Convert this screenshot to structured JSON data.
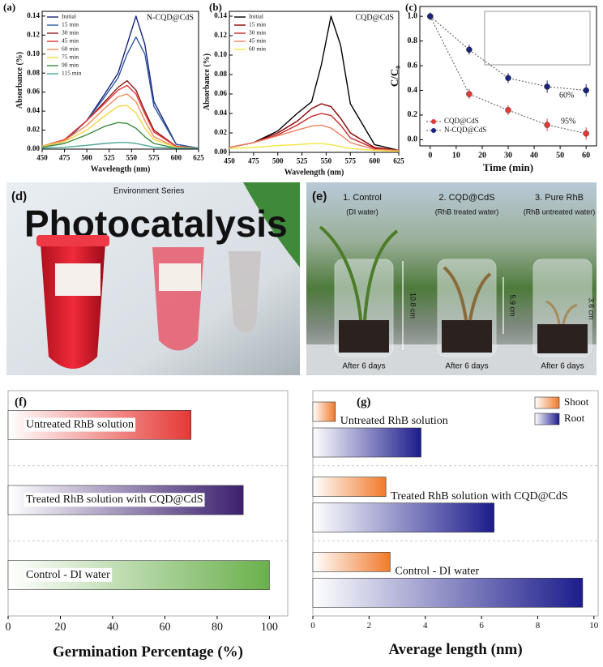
{
  "chart_data": [
    {
      "type": "line",
      "label": "(a)",
      "annotation": "N-CQD@CdS",
      "x_label": "Wavelength (nm)",
      "y_label": "Absorbance (%)",
      "legend": "upper left",
      "x": [
        450,
        475,
        500,
        520,
        535,
        545,
        555,
        565,
        575,
        600,
        625
      ],
      "xlim": [
        450,
        625
      ],
      "xticks": [
        450,
        475,
        500,
        525,
        550,
        575,
        600,
        625
      ],
      "ylim": [
        0,
        0.145
      ],
      "yticks": [
        {
          "value": 0,
          "label": "0.00"
        },
        0.02,
        0.04,
        0.06,
        0.08,
        {
          "value": 0.1,
          "label": "0.10"
        },
        0.12,
        0.14
      ],
      "series": [
        {
          "name": "Initial",
          "color": "#1a237e",
          "values": [
            0.003,
            0.008,
            0.03,
            0.058,
            0.08,
            0.11,
            0.14,
            0.11,
            0.05,
            0.005,
            0.001
          ]
        },
        {
          "name": "15 min",
          "color": "#2c5aa0",
          "values": [
            0.003,
            0.008,
            0.03,
            0.055,
            0.075,
            0.1,
            0.118,
            0.1,
            0.045,
            0.005,
            0.001
          ]
        },
        {
          "name": "30 min",
          "color": "#8b1a1a",
          "values": [
            0.003,
            0.01,
            0.03,
            0.05,
            0.065,
            0.072,
            0.062,
            0.04,
            0.02,
            0.003,
            0.001
          ]
        },
        {
          "name": "45 min",
          "color": "#e53935",
          "values": [
            0.003,
            0.01,
            0.03,
            0.048,
            0.062,
            0.067,
            0.058,
            0.037,
            0.018,
            0.003,
            0.001
          ]
        },
        {
          "name": "60 min",
          "color": "#ef8a5a",
          "values": [
            0.003,
            0.009,
            0.025,
            0.043,
            0.055,
            0.058,
            0.05,
            0.03,
            0.013,
            0.002,
            0.001
          ]
        },
        {
          "name": "75 min",
          "color": "#f5d742",
          "values": [
            0.003,
            0.008,
            0.02,
            0.035,
            0.045,
            0.046,
            0.038,
            0.022,
            0.01,
            0.002,
            0.001
          ]
        },
        {
          "name": "90 min",
          "color": "#3c8a3c",
          "values": [
            0.002,
            0.006,
            0.015,
            0.024,
            0.028,
            0.027,
            0.022,
            0.013,
            0.006,
            0.001,
            0.001
          ]
        },
        {
          "name": "115 min",
          "color": "#4aa89a",
          "values": [
            0.001,
            0.002,
            0.004,
            0.006,
            0.007,
            0.007,
            0.006,
            0.004,
            0.002,
            0.001,
            0.001
          ]
        }
      ]
    },
    {
      "type": "line",
      "label": "(b)",
      "annotation": "CQD@CdS",
      "x_label": "Wavelength (nm)",
      "y_label": "Absorbance (%)",
      "legend": "upper left",
      "x": [
        450,
        475,
        500,
        520,
        535,
        545,
        555,
        565,
        575,
        600,
        625
      ],
      "xlim": [
        450,
        625
      ],
      "xticks": [
        450,
        475,
        500,
        525,
        550,
        575,
        600,
        625
      ],
      "ylim": [
        0,
        0.145
      ],
      "yticks": [
        {
          "value": 0,
          "label": "0.00"
        },
        0.02,
        0.04,
        0.06,
        0.08,
        {
          "value": 0.1,
          "label": "0.10"
        },
        0.12,
        0.14
      ],
      "series": [
        {
          "name": "Initial",
          "color": "#000000",
          "values": [
            0.005,
            0.01,
            0.022,
            0.04,
            0.052,
            0.09,
            0.14,
            0.11,
            0.05,
            0.008,
            0.002
          ]
        },
        {
          "name": "15 min",
          "color": "#8b0000",
          "values": [
            0.005,
            0.01,
            0.02,
            0.032,
            0.045,
            0.05,
            0.047,
            0.035,
            0.02,
            0.005,
            0.002
          ]
        },
        {
          "name": "30 min",
          "color": "#c62828",
          "values": [
            0.005,
            0.01,
            0.018,
            0.028,
            0.037,
            0.04,
            0.038,
            0.028,
            0.015,
            0.004,
            0.002
          ]
        },
        {
          "name": "45 min",
          "color": "#f08060",
          "values": [
            0.005,
            0.01,
            0.017,
            0.023,
            0.027,
            0.028,
            0.025,
            0.018,
            0.01,
            0.003,
            0.002
          ]
        },
        {
          "name": "60 min",
          "color": "#f5e642",
          "values": [
            0.004,
            0.005,
            0.007,
            0.008,
            0.009,
            0.009,
            0.008,
            0.006,
            0.004,
            0.002,
            0.001
          ]
        }
      ]
    },
    {
      "type": "scatter",
      "label": "(c)",
      "x_label": "Time (min)",
      "y_label": "C/C₀",
      "legend": "lower left",
      "annotations": [
        "60%",
        "95%"
      ],
      "x": [
        0,
        15,
        30,
        45,
        60
      ],
      "xlim": [
        -4,
        64
      ],
      "xticks": [
        0,
        10,
        20,
        30,
        40,
        50,
        60
      ],
      "ylim": [
        -0.05,
        1.08
      ],
      "yticks": [
        {
          "value": 0,
          "label": "0.0"
        },
        0.2,
        0.4,
        0.6,
        0.8,
        {
          "value": 1,
          "label": "1.0"
        }
      ],
      "series": [
        {
          "name": "CQD@CdS",
          "color": "#e53935",
          "values": [
            1.0,
            0.37,
            0.24,
            0.12,
            0.05
          ],
          "errors": [
            0.03,
            0.04,
            0.04,
            0.05,
            0.05
          ]
        },
        {
          "name": "N-CQD@CdS",
          "color": "#1a237e",
          "values": [
            1.0,
            0.73,
            0.5,
            0.43,
            0.4
          ],
          "errors": [
            0.03,
            0.04,
            0.04,
            0.05,
            0.05
          ]
        }
      ]
    },
    {
      "type": "bar",
      "orientation": "horizontal",
      "label": "(f)",
      "x_label": "Germination Percentage (%)",
      "categories": [
        "Untreated RhB solution",
        "Treated RhB solution with CQD@CdS",
        "Control - DI water"
      ],
      "values": [
        70,
        90,
        100
      ],
      "colors": [
        "#e53935",
        "#3b1f6e",
        "#6ab04c"
      ],
      "xlim": [
        0,
        107
      ],
      "xticks": [
        0,
        20,
        40,
        60,
        80,
        100
      ]
    },
    {
      "type": "grouped-bar",
      "orientation": "horizontal",
      "label": "(g)",
      "x_label": "Average length (nm)",
      "legend": "upper right",
      "categories": [
        "Untreated RhB solution",
        "Treated RhB solution with CQD@CdS",
        "Control - DI water"
      ],
      "series": [
        {
          "name": "Shoot",
          "color": "#f07a2a",
          "values": [
            0.8,
            2.6,
            2.75
          ]
        },
        {
          "name": "Root",
          "color": "#1c1c8c",
          "values": [
            3.85,
            6.45,
            9.6
          ]
        }
      ],
      "xlim": [
        0,
        10.15
      ],
      "xticks": [
        0,
        2,
        4,
        6,
        8,
        10
      ]
    }
  ],
  "photos": {
    "d": {
      "label": "(d)",
      "book_title": "Photocatalysis",
      "series_name": "Environment Series"
    },
    "e": {
      "label": "(e)",
      "jars": [
        {
          "title": "1. Control",
          "subtitle": "(DI water)",
          "height": "10.8 cm",
          "caption": "After 6 days"
        },
        {
          "title": "2. CQD@CdS",
          "subtitle": "(RhB treated water)",
          "height": "5.9 cm",
          "caption": "After 6 days"
        },
        {
          "title": "3. Pure RhB",
          "subtitle": "(RhB untreated water)",
          "height": "3.6 cm",
          "caption": "After 6 days"
        }
      ]
    }
  }
}
